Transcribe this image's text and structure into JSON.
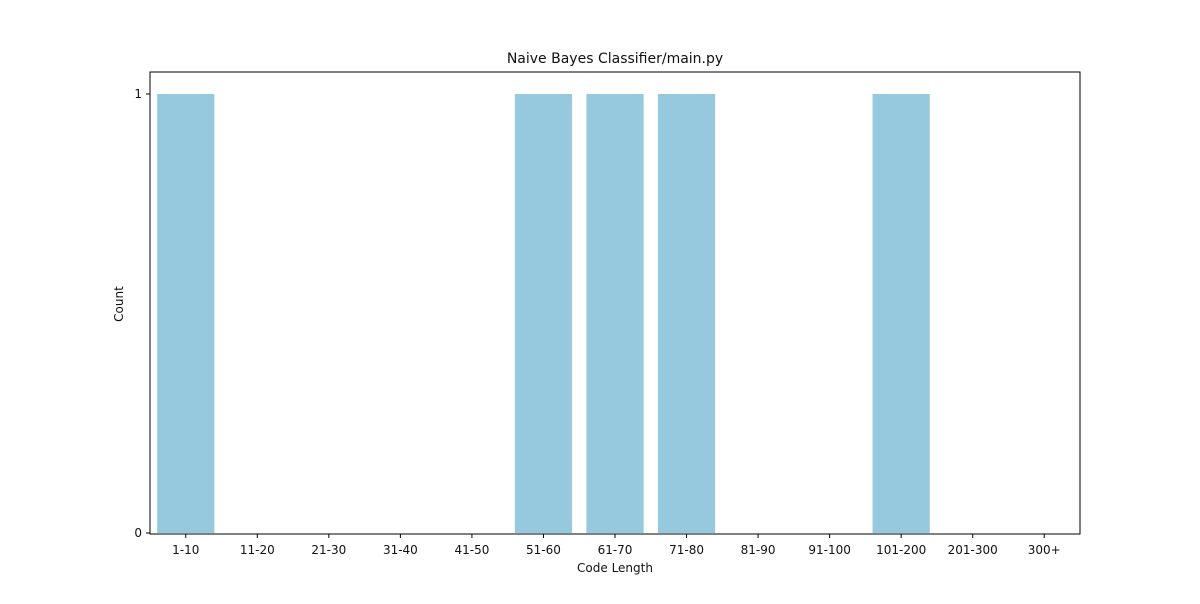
{
  "chart_data": {
    "type": "bar",
    "title": "Naive Bayes Classifier/main.py",
    "xlabel": "Code Length",
    "ylabel": "Count",
    "categories": [
      "1-10",
      "11-20",
      "21-30",
      "31-40",
      "41-50",
      "51-60",
      "61-70",
      "71-80",
      "81-90",
      "91-100",
      "101-200",
      "201-300",
      "300+"
    ],
    "values": [
      1,
      0,
      0,
      0,
      0,
      1,
      1,
      1,
      0,
      0,
      1,
      0,
      0
    ],
    "ylim": [
      0,
      1
    ],
    "yticks": [
      0,
      1
    ],
    "grid": false,
    "legend": "none",
    "bar_color": "#96c9de",
    "frame_color": "#000000"
  }
}
